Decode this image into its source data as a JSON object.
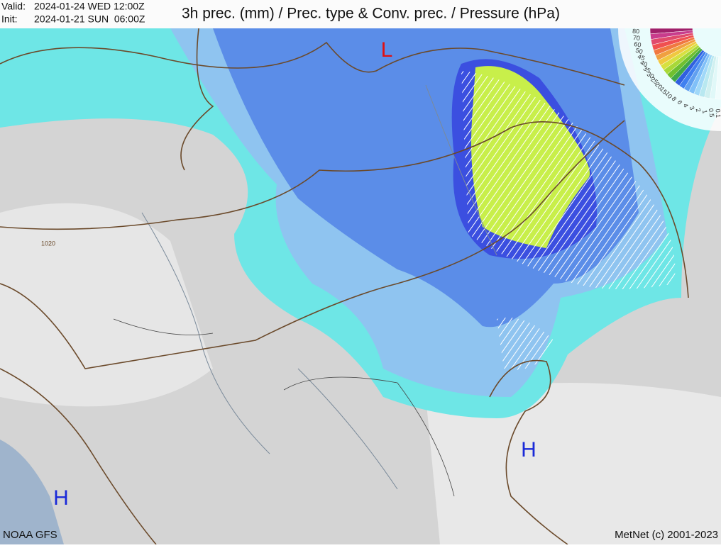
{
  "header": {
    "valid_label": "Valid:",
    "valid": "2024-01-24 WED 12:00Z",
    "init_label": "Init:",
    "init": "2024-01-21 SUN  06:00Z",
    "title": "3h prec. (mm) / Prec. type & Conv. prec. / Pressure (hPa)"
  },
  "map": {
    "pressure_centers": [
      {
        "label": "L"
      },
      {
        "label": "H"
      },
      {
        "label": "H"
      }
    ],
    "isobar_label": "1020"
  },
  "legend": {
    "labels": [
      "80",
      "70",
      "60",
      "50",
      "45",
      "40",
      "35",
      "30",
      "25",
      "20",
      "15",
      "10",
      "8",
      "6",
      "4",
      "3",
      "2",
      "1",
      "0.5",
      "0.1"
    ]
  },
  "footer": {
    "source": "NOAA GFS",
    "credit": "MetNet (c) 2001-2023"
  }
}
